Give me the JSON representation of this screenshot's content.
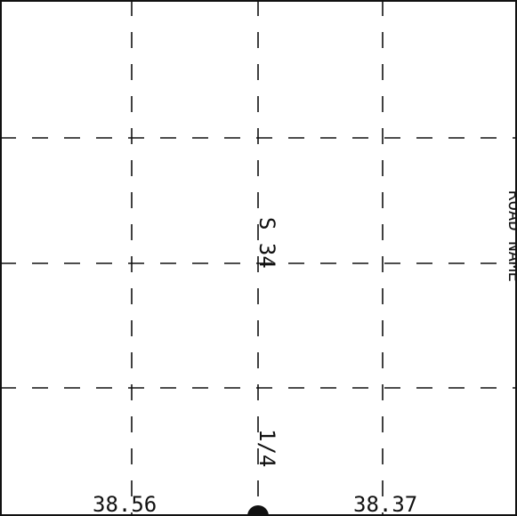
{
  "map": {
    "section_label": "S 34",
    "quarter_label": "1/4",
    "bottom_left_coord": "38.56",
    "bottom_right_coord": "38.37",
    "edge_label": "ROAD NAME",
    "line_color": "#111111",
    "background_color": "#ffffff"
  }
}
